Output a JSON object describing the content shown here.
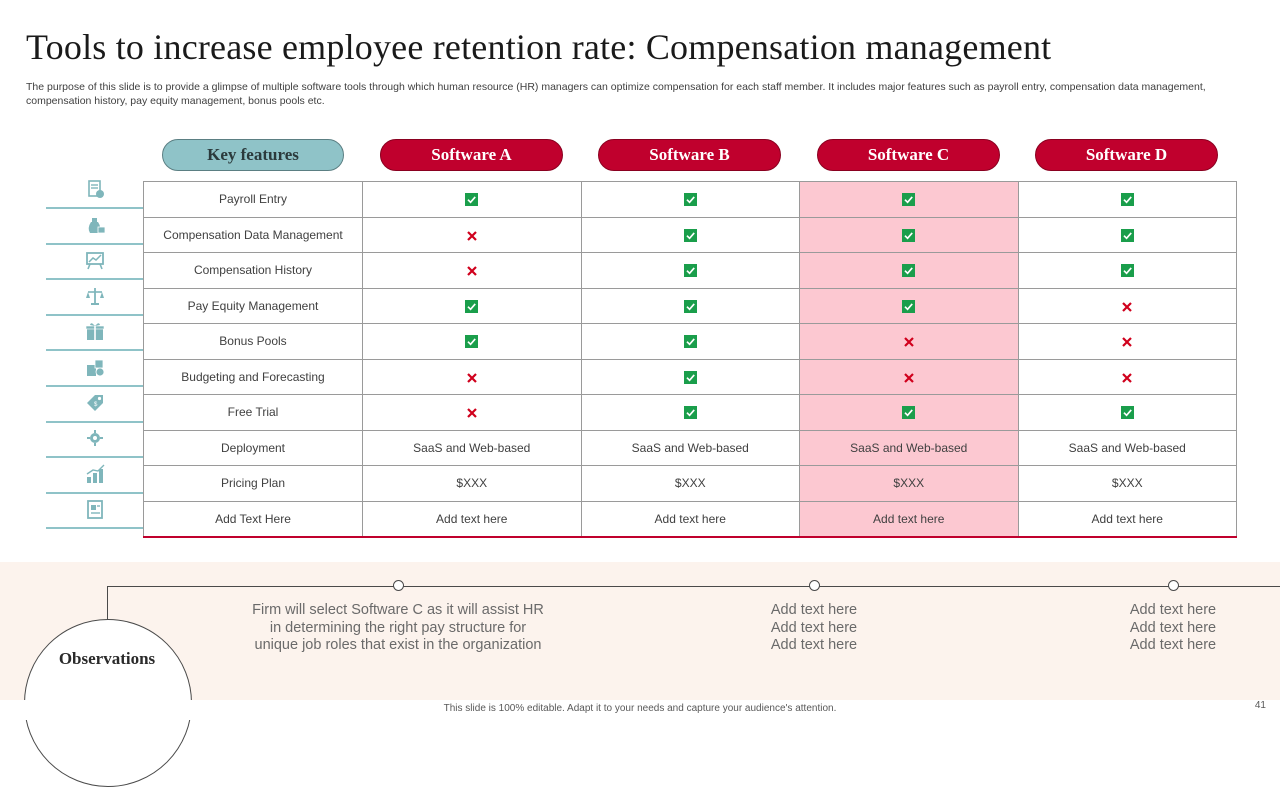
{
  "slide": {
    "title": "Tools to increase employee retention rate: Compensation management",
    "subtitle": "The purpose of this slide is to provide a glimpse of multiple software tools through which human resource (HR) managers can optimize compensation for each staff member. It includes major features such as payroll entry, compensation data management, compensation history, pay equity management, bonus pools etc.",
    "footer": "This slide is 100% editable. Adapt it to your needs and capture your audience's attention.",
    "page_number": "41"
  },
  "table": {
    "key_header": "Key features",
    "software": [
      "Software A",
      "Software B",
      "Software C",
      "Software D"
    ],
    "highlight_column": 2,
    "rows": [
      {
        "feature": "Payroll Entry",
        "icon": "payroll-icon",
        "cells": [
          {
            "type": "check"
          },
          {
            "type": "check"
          },
          {
            "type": "check"
          },
          {
            "type": "check"
          }
        ]
      },
      {
        "feature": "Compensation Data Management",
        "icon": "money-bag-icon",
        "cells": [
          {
            "type": "cross"
          },
          {
            "type": "check"
          },
          {
            "type": "check"
          },
          {
            "type": "check"
          }
        ]
      },
      {
        "feature": "Compensation History",
        "icon": "history-board-icon",
        "cells": [
          {
            "type": "cross"
          },
          {
            "type": "check"
          },
          {
            "type": "check"
          },
          {
            "type": "check"
          }
        ]
      },
      {
        "feature": "Pay Equity Management",
        "icon": "scales-icon",
        "cells": [
          {
            "type": "check"
          },
          {
            "type": "check"
          },
          {
            "type": "check"
          },
          {
            "type": "cross"
          }
        ]
      },
      {
        "feature": "Bonus Pools",
        "icon": "gift-icon",
        "cells": [
          {
            "type": "check"
          },
          {
            "type": "check"
          },
          {
            "type": "cross"
          },
          {
            "type": "cross"
          }
        ]
      },
      {
        "feature": "Budgeting and Forecasting",
        "icon": "budget-icon",
        "cells": [
          {
            "type": "cross"
          },
          {
            "type": "check"
          },
          {
            "type": "cross"
          },
          {
            "type": "cross"
          }
        ]
      },
      {
        "feature": "Free Trial",
        "icon": "price-tag-icon",
        "cells": [
          {
            "type": "cross"
          },
          {
            "type": "check"
          },
          {
            "type": "check"
          },
          {
            "type": "check"
          }
        ]
      },
      {
        "feature": "Deployment",
        "icon": "cloud-gear-icon",
        "cells": [
          {
            "type": "text",
            "value": "SaaS and Web-based"
          },
          {
            "type": "text",
            "value": "SaaS and Web-based"
          },
          {
            "type": "text",
            "value": "SaaS and Web-based"
          },
          {
            "type": "text",
            "value": "SaaS and Web-based"
          }
        ]
      },
      {
        "feature": "Pricing Plan",
        "icon": "growth-chart-icon",
        "cells": [
          {
            "type": "text",
            "value": "$XXX"
          },
          {
            "type": "text",
            "value": "$XXX"
          },
          {
            "type": "text",
            "value": "$XXX"
          },
          {
            "type": "text",
            "value": "$XXX"
          }
        ]
      },
      {
        "feature": "Add Text Here",
        "icon": "invoice-icon",
        "cells": [
          {
            "type": "text",
            "value": "Add text here"
          },
          {
            "type": "text",
            "value": "Add text here"
          },
          {
            "type": "text",
            "value": "Add text here"
          },
          {
            "type": "text",
            "value": "Add text here"
          }
        ]
      }
    ]
  },
  "observations": {
    "label": "Observations",
    "items": [
      [
        "Firm will select Software C as it will assist HR",
        "in determining the right pay structure for",
        "unique job roles that exist in the organization"
      ],
      [
        "Add text here",
        "Add text here",
        "Add text here"
      ],
      [
        "Add text here",
        "Add text here",
        "Add text here"
      ]
    ]
  },
  "colors": {
    "accent_red": "#c0002d",
    "teal": "#8fc3c8",
    "highlight_pink": "#fcc8d1",
    "check_green": "#1a9e4b",
    "cross_red": "#d0001c"
  }
}
